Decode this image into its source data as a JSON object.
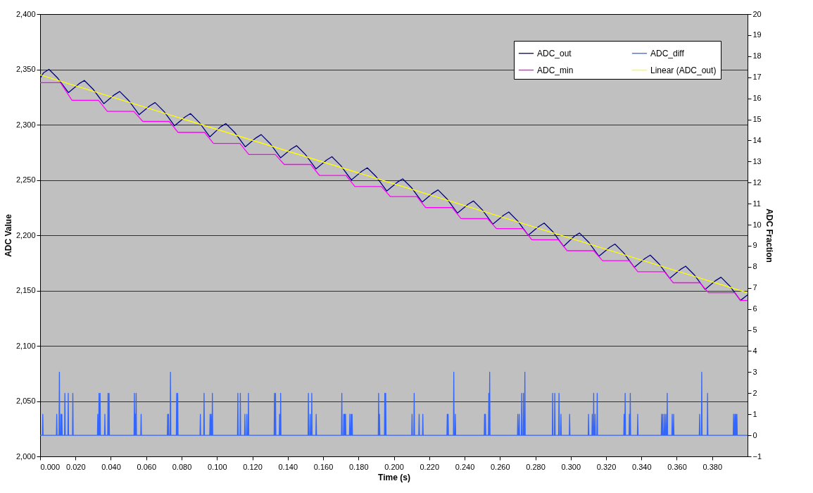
{
  "chart_data": {
    "type": "line",
    "xlabel": "Time (s)",
    "ylabel": "ADC Value",
    "y2label": "ADC Fraction",
    "xlim": [
      0,
      0.4
    ],
    "xticks": [
      {
        "value": 0,
        "label": "0.000"
      },
      {
        "value": 0.02,
        "label": "0.020"
      },
      {
        "value": 0.04,
        "label": "0.040"
      },
      {
        "value": 0.06,
        "label": "0.060"
      },
      {
        "value": 0.08,
        "label": "0.080"
      },
      {
        "value": 0.1,
        "label": "0.100"
      },
      {
        "value": 0.12,
        "label": "0.120"
      },
      {
        "value": 0.14,
        "label": "0.140"
      },
      {
        "value": 0.16,
        "label": "0.160"
      },
      {
        "value": 0.18,
        "label": "0.180"
      },
      {
        "value": 0.2,
        "label": "0.200"
      },
      {
        "value": 0.22,
        "label": "0.220"
      },
      {
        "value": 0.24,
        "label": "0.240"
      },
      {
        "value": 0.26,
        "label": "0.260"
      },
      {
        "value": 0.28,
        "label": "0.280"
      },
      {
        "value": 0.3,
        "label": "0.300"
      },
      {
        "value": 0.32,
        "label": "0.320"
      },
      {
        "value": 0.34,
        "label": "0.340"
      },
      {
        "value": 0.36,
        "label": "0.360"
      },
      {
        "value": 0.38,
        "label": "0.380"
      }
    ],
    "ylim": [
      2000,
      2400
    ],
    "yticks": [
      {
        "value": 2000,
        "label": "2,000"
      },
      {
        "value": 2050,
        "label": "2,050"
      },
      {
        "value": 2100,
        "label": "2,100"
      },
      {
        "value": 2150,
        "label": "2,150"
      },
      {
        "value": 2200,
        "label": "2,200"
      },
      {
        "value": 2250,
        "label": "2,250"
      },
      {
        "value": 2300,
        "label": "2,300"
      },
      {
        "value": 2350,
        "label": "2,350"
      },
      {
        "value": 2400,
        "label": "2,400"
      }
    ],
    "y2lim": [
      -1,
      20
    ],
    "y2ticks": [
      -1,
      0,
      1,
      2,
      3,
      4,
      5,
      6,
      7,
      8,
      9,
      10,
      11,
      12,
      13,
      14,
      15,
      16,
      17,
      18,
      19,
      20
    ],
    "grid": "y",
    "legend": "top right",
    "series": [
      {
        "name": "ADC_out",
        "color": "#000080",
        "x": [
          0,
          0.002,
          0.005,
          0.01,
          0.016,
          0.022,
          0.025,
          0.03,
          0.036,
          0.042,
          0.045,
          0.05,
          0.056,
          0.062,
          0.065,
          0.07,
          0.076,
          0.082,
          0.085,
          0.09,
          0.096,
          0.102,
          0.105,
          0.11,
          0.116,
          0.122,
          0.125,
          0.13,
          0.136,
          0.142,
          0.145,
          0.15,
          0.156,
          0.162,
          0.165,
          0.17,
          0.176,
          0.182,
          0.185,
          0.19,
          0.196,
          0.202,
          0.205,
          0.21,
          0.216,
          0.222,
          0.225,
          0.23,
          0.236,
          0.242,
          0.245,
          0.25,
          0.256,
          0.262,
          0.265,
          0.27,
          0.276,
          0.282,
          0.285,
          0.29,
          0.296,
          0.302,
          0.305,
          0.31,
          0.316,
          0.322,
          0.325,
          0.33,
          0.336,
          0.342,
          0.345,
          0.35,
          0.356,
          0.362,
          0.365,
          0.37,
          0.376,
          0.382,
          0.385,
          0.39,
          0.396,
          0.4
        ],
        "values": [
          2342,
          2347,
          2350,
          2342,
          2329,
          2337,
          2340,
          2332,
          2319,
          2327,
          2330,
          2322,
          2309,
          2317,
          2320,
          2312,
          2299,
          2307,
          2310,
          2302,
          2289,
          2298,
          2301,
          2293,
          2280,
          2288,
          2291,
          2283,
          2270,
          2278,
          2281,
          2273,
          2260,
          2268,
          2271,
          2263,
          2250,
          2258,
          2261,
          2253,
          2240,
          2248,
          2251,
          2243,
          2230,
          2238,
          2241,
          2233,
          2220,
          2228,
          2231,
          2223,
          2210,
          2218,
          2221,
          2213,
          2200,
          2208,
          2211,
          2203,
          2190,
          2199,
          2202,
          2194,
          2181,
          2189,
          2192,
          2184,
          2171,
          2179,
          2182,
          2174,
          2161,
          2169,
          2172,
          2164,
          2151,
          2159,
          2162,
          2154,
          2141,
          2146
        ]
      },
      {
        "name": "ADC_min",
        "color": "#ff00ff",
        "x": [
          0,
          0.0115,
          0.018,
          0.033,
          0.038,
          0.053,
          0.058,
          0.073,
          0.078,
          0.093,
          0.098,
          0.113,
          0.118,
          0.133,
          0.138,
          0.153,
          0.158,
          0.173,
          0.178,
          0.193,
          0.198,
          0.213,
          0.218,
          0.233,
          0.238,
          0.253,
          0.258,
          0.273,
          0.278,
          0.293,
          0.298,
          0.313,
          0.318,
          0.333,
          0.338,
          0.353,
          0.358,
          0.373,
          0.378,
          0.393,
          0.396,
          0.4
        ],
        "values": [
          2338,
          2338,
          2322,
          2322,
          2312,
          2312,
          2303,
          2303,
          2293,
          2293,
          2283,
          2283,
          2273,
          2273,
          2264,
          2264,
          2254,
          2254,
          2244,
          2244,
          2235,
          2235,
          2225,
          2225,
          2215,
          2215,
          2206,
          2206,
          2196,
          2196,
          2186,
          2186,
          2177,
          2177,
          2167,
          2167,
          2157,
          2157,
          2148,
          2148,
          2141,
          2141
        ]
      },
      {
        "name": "ADC_diff",
        "color": "#3366ff",
        "axis": "y2",
        "x": [
          0,
          0.0013,
          0.0015,
          0.0017,
          0.0092,
          0.0094,
          0.0096,
          0.0107,
          0.0109,
          0.0111,
          0.0116,
          0.0118,
          0.012,
          0.0121,
          0.0123,
          0.0125,
          0.0138,
          0.014,
          0.0142,
          0.0157,
          0.0159,
          0.0161,
          0.0183,
          0.0185,
          0.0187,
          0.0324,
          0.0326,
          0.0328,
          0.0331,
          0.0333,
          0.0335,
          0.0337,
          0.0339,
          0.0341,
          0.0364,
          0.0366,
          0.0368,
          0.0382,
          0.0384,
          0.0386,
          0.0388,
          0.039,
          0.0392,
          0.0531,
          0.0533,
          0.0535,
          0.0536,
          0.0538,
          0.054,
          0.0541,
          0.0543,
          0.0545,
          0.0569,
          0.0571,
          0.0573,
          0.0719,
          0.0721,
          0.0723,
          0.0724,
          0.0726,
          0.0728,
          0.0735,
          0.0737,
          0.0739,
          0.077,
          0.0772,
          0.0774,
          0.0776,
          0.0778,
          0.078,
          0.0904,
          0.0906,
          0.0908,
          0.0925,
          0.0927,
          0.0929,
          0.0959,
          0.0961,
          0.0963,
          0.0965,
          0.0967,
          0.0969,
          0.0972,
          0.0974,
          0.0976,
          0.1116,
          0.1118,
          0.112,
          0.113,
          0.1132,
          0.1134,
          0.1156,
          0.1158,
          0.116,
          0.1167,
          0.1169,
          0.1171,
          0.1176,
          0.1178,
          0.118,
          0.1323,
          0.1325,
          0.1327,
          0.1329,
          0.1331,
          0.1333,
          0.1352,
          0.1354,
          0.1356,
          0.1358,
          0.136,
          0.1362,
          0.1515,
          0.1517,
          0.1519,
          0.1525,
          0.1527,
          0.1529,
          0.1534,
          0.1536,
          0.1538,
          0.1559,
          0.1561,
          0.1563,
          0.1704,
          0.1706,
          0.1708,
          0.1715,
          0.1717,
          0.1719,
          0.172,
          0.1722,
          0.1724,
          0.1725,
          0.1727,
          0.1729,
          0.1749,
          0.1751,
          0.1753,
          0.1757,
          0.1759,
          0.1761,
          0.1762,
          0.1764,
          0.1766,
          0.1912,
          0.1914,
          0.1916,
          0.1917,
          0.1919,
          0.1921,
          0.1947,
          0.1949,
          0.1951,
          0.1952,
          0.1954,
          0.1956,
          0.2101,
          0.2103,
          0.2105,
          0.2113,
          0.2115,
          0.2117,
          0.2141,
          0.2143,
          0.2145,
          0.2162,
          0.2164,
          0.2166,
          0.23,
          0.2302,
          0.2304,
          0.2305,
          0.2307,
          0.2309,
          0.2337,
          0.2339,
          0.2341,
          0.2346,
          0.2348,
          0.235,
          0.2511,
          0.2513,
          0.2515,
          0.2516,
          0.2518,
          0.252,
          0.2535,
          0.2537,
          0.2539,
          0.254,
          0.2542,
          0.2544,
          0.2699,
          0.2701,
          0.2703,
          0.2707,
          0.2709,
          0.2711,
          0.2721,
          0.2723,
          0.2725,
          0.2731,
          0.2733,
          0.2735,
          0.2739,
          0.2741,
          0.2743,
          0.2896,
          0.2898,
          0.29,
          0.2908,
          0.291,
          0.2912,
          0.2932,
          0.2934,
          0.2936,
          0.2943,
          0.2945,
          0.2947,
          0.2992,
          0.2994,
          0.2996,
          0.3099,
          0.3101,
          0.3103,
          0.312,
          0.3122,
          0.3124,
          0.3128,
          0.313,
          0.3132,
          0.3136,
          0.3138,
          0.314,
          0.3148,
          0.315,
          0.3152,
          0.33,
          0.3302,
          0.3304,
          0.3306,
          0.3308,
          0.331,
          0.333,
          0.3332,
          0.3334,
          0.3335,
          0.3337,
          0.3339,
          0.3377,
          0.3379,
          0.3381,
          0.3512,
          0.3514,
          0.3516,
          0.3519,
          0.3521,
          0.3523,
          0.3528,
          0.353,
          0.3532,
          0.3536,
          0.3538,
          0.354,
          0.3544,
          0.3546,
          0.3548,
          0.3572,
          0.3574,
          0.3576,
          0.358,
          0.3582,
          0.3584,
          0.3727,
          0.3729,
          0.3731,
          0.3739,
          0.3741,
          0.3743,
          0.3772,
          0.3774,
          0.3776,
          0.3919,
          0.3921,
          0.3923,
          0.3926,
          0.3928,
          0.393,
          0.3932,
          0.3934,
          0.3936,
          0.3938,
          0.394,
          0.3942,
          0.4
        ],
        "values": [
          0,
          0,
          1,
          0,
          0,
          1,
          0,
          0,
          3,
          0,
          0,
          1,
          0,
          0,
          1,
          0,
          0,
          2,
          0,
          0,
          2,
          0,
          0,
          2,
          0,
          0,
          1,
          0,
          0,
          2,
          0,
          0,
          2,
          0,
          0,
          1,
          0,
          0,
          2,
          0,
          0,
          2,
          0,
          0,
          2,
          0,
          0,
          1,
          0,
          0,
          2,
          0,
          0,
          1,
          0,
          0,
          1,
          0,
          0,
          1,
          0,
          0,
          3,
          0,
          0,
          2,
          0,
          0,
          2,
          0,
          0,
          1,
          0,
          0,
          2,
          0,
          0,
          1,
          0,
          0,
          1,
          0,
          0,
          2,
          0,
          0,
          2,
          0,
          0,
          2,
          0,
          0,
          1,
          0,
          0,
          1,
          0,
          0,
          2,
          0,
          0,
          2,
          0,
          0,
          2,
          0,
          0,
          1,
          0,
          0,
          2,
          0,
          0,
          2,
          0,
          0,
          1,
          0,
          0,
          2,
          0,
          0,
          1,
          0,
          0,
          2,
          0,
          0,
          1,
          0,
          0,
          1,
          0,
          0,
          1,
          0,
          0,
          1,
          0,
          0,
          1,
          0,
          0,
          1,
          0,
          0,
          2,
          0,
          0,
          1,
          0,
          0,
          2,
          0,
          0,
          2,
          0,
          0,
          1,
          0,
          0,
          2,
          0,
          0,
          1,
          0,
          0,
          1,
          0,
          0,
          1,
          0,
          0,
          1,
          0,
          0,
          3,
          0,
          0,
          1,
          0,
          0,
          1,
          0,
          0,
          1,
          0,
          0,
          2,
          0,
          0,
          3,
          0,
          0,
          1,
          0,
          0,
          1,
          0,
          0,
          2,
          0,
          0,
          2,
          0,
          0,
          3,
          0,
          0,
          2,
          0,
          0,
          2,
          0,
          0,
          2,
          0,
          0,
          1,
          0,
          0,
          1,
          0,
          0,
          1,
          0,
          0,
          1,
          0,
          0,
          2,
          0,
          0,
          1,
          0,
          0,
          2,
          0,
          0,
          1,
          0,
          0,
          2,
          0,
          0,
          1,
          0,
          0,
          2,
          0,
          0,
          1,
          0,
          0,
          1,
          0,
          0,
          1,
          0,
          0,
          1,
          0,
          0,
          1,
          0,
          0,
          2,
          0,
          0,
          1,
          0,
          0,
          1,
          0,
          0,
          1,
          0,
          0,
          3,
          0,
          0,
          2,
          0,
          0,
          1,
          0,
          0,
          1,
          0,
          0,
          1,
          0,
          0,
          1,
          0,
          0
        ]
      },
      {
        "name": "Linear (ADC_out)",
        "color": "#ffff00",
        "x": [
          0,
          0.4
        ],
        "values": [
          2345,
          2148
        ]
      }
    ]
  }
}
